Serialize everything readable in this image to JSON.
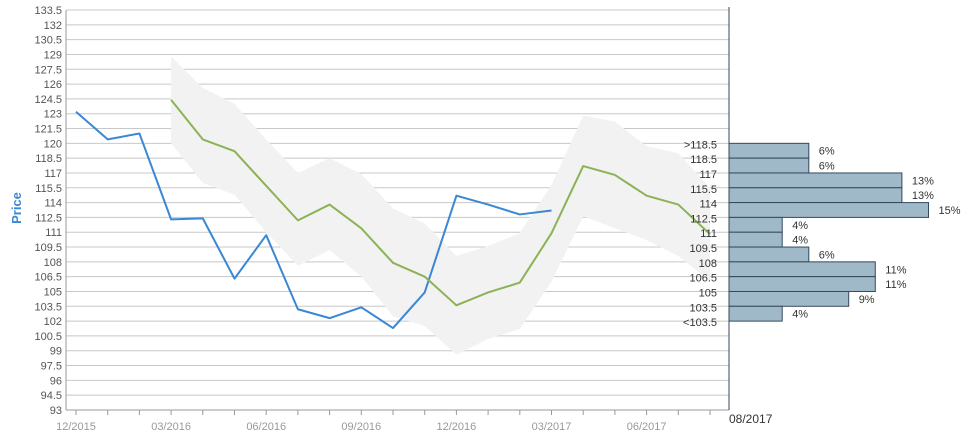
{
  "chart_data": {
    "type": "line",
    "ylabel": "Price",
    "ylim": [
      93,
      133.5
    ],
    "y_ticks": [
      93,
      94.5,
      96,
      97.5,
      99,
      100.5,
      102,
      103.5,
      105,
      106.5,
      108,
      109.5,
      111,
      112.5,
      114,
      115.5,
      117,
      118.5,
      120,
      121.5,
      123,
      124.5,
      126,
      127.5,
      129,
      130.5,
      132,
      133.5
    ],
    "y_tick_labels": [
      "93",
      "94.5",
      "96",
      "97.5",
      "99",
      "100.5",
      "102",
      "103.5",
      "105",
      "106.5",
      "108",
      "109.5",
      "111",
      "112.5",
      "114",
      "115.5",
      "117",
      "118.5",
      "120",
      "121.5",
      "123",
      "124.5",
      "126",
      "127.5",
      "129",
      "130.5",
      "132",
      "133.5"
    ],
    "x_tick_labels": [
      "12/2015",
      "03/2016",
      "06/2016",
      "09/2016",
      "12/2016",
      "03/2017",
      "06/2017"
    ],
    "x_extra_label": "08/2017",
    "x_start": "2015-12",
    "months": [
      "2015-12",
      "2016-01",
      "2016-02",
      "2016-03",
      "2016-04",
      "2016-05",
      "2016-06",
      "2016-07",
      "2016-08",
      "2016-09",
      "2016-10",
      "2016-11",
      "2016-12",
      "2017-01",
      "2017-02",
      "2017-03",
      "2017-04",
      "2017-05",
      "2017-06",
      "2017-07",
      "2017-08"
    ],
    "colors": {
      "actual": "#3a87d4",
      "forecast": "#8db255",
      "band": "#f2f2f2",
      "histogram_fill": "#a0b9c8",
      "histogram_stroke": "#34495e",
      "grid": "#c8c8c8"
    },
    "series": [
      {
        "key": "actual",
        "points": [
          [
            "2015-12",
            123.2
          ],
          [
            "2016-01",
            120.4
          ],
          [
            "2016-02",
            121.0
          ],
          [
            "2016-03",
            112.3
          ],
          [
            "2016-04",
            112.4
          ],
          [
            "2016-05",
            106.3
          ],
          [
            "2016-06",
            110.7
          ],
          [
            "2016-07",
            103.2
          ],
          [
            "2016-08",
            102.3
          ],
          [
            "2016-09",
            103.4
          ],
          [
            "2016-10",
            101.3
          ],
          [
            "2016-11",
            104.9
          ],
          [
            "2016-12",
            114.7
          ],
          [
            "2017-01",
            113.8
          ],
          [
            "2017-02",
            112.8
          ],
          [
            "2017-03",
            113.2
          ]
        ]
      },
      {
        "key": "forecast",
        "points": [
          [
            "2016-03",
            124.4
          ],
          [
            "2016-04",
            120.4
          ],
          [
            "2016-05",
            119.2
          ],
          [
            "2016-06",
            115.7
          ],
          [
            "2016-07",
            112.2
          ],
          [
            "2016-08",
            113.8
          ],
          [
            "2016-09",
            111.4
          ],
          [
            "2016-10",
            107.9
          ],
          [
            "2016-11",
            106.5
          ],
          [
            "2016-12",
            103.6
          ],
          [
            "2017-01",
            104.9
          ],
          [
            "2017-02",
            105.9
          ],
          [
            "2017-03",
            110.9
          ],
          [
            "2017-04",
            117.7
          ],
          [
            "2017-05",
            116.8
          ],
          [
            "2017-06",
            114.7
          ],
          [
            "2017-07",
            113.8
          ],
          [
            "2017-08",
            110.8
          ]
        ]
      }
    ],
    "band": [
      [
        "2016-03",
        120.0,
        128.8
      ],
      [
        "2016-04",
        116.0,
        125.6
      ],
      [
        "2016-05",
        114.8,
        124.0
      ],
      [
        "2016-06",
        111.0,
        120.4
      ],
      [
        "2016-07",
        107.6,
        117.0
      ],
      [
        "2016-08",
        109.2,
        118.5
      ],
      [
        "2016-09",
        106.5,
        116.9
      ],
      [
        "2016-10",
        102.5,
        113.4
      ],
      [
        "2016-11",
        101.5,
        111.9
      ],
      [
        "2016-12",
        98.6,
        108.6
      ],
      [
        "2017-01",
        100.2,
        109.6
      ],
      [
        "2017-02",
        101.2,
        110.9
      ],
      [
        "2017-03",
        106.0,
        115.8
      ],
      [
        "2017-04",
        112.6,
        122.8
      ],
      [
        "2017-05",
        111.4,
        122.2
      ],
      [
        "2017-06",
        110.2,
        119.7
      ],
      [
        "2017-07",
        108.6,
        119.0
      ],
      [
        "2017-08",
        106.0,
        115.5
      ]
    ],
    "histogram": [
      {
        "label": ">118.5",
        "value": 6,
        "text": "6%"
      },
      {
        "label": "118.5",
        "value": 6,
        "text": "6%"
      },
      {
        "label": "117",
        "value": 13,
        "text": "13%"
      },
      {
        "label": "115.5",
        "value": 13,
        "text": "13%"
      },
      {
        "label": "114",
        "value": 15,
        "text": "15%"
      },
      {
        "label": "112.5",
        "value": 4,
        "text": "4%"
      },
      {
        "label": "111",
        "value": 4,
        "text": "4%"
      },
      {
        "label": "109.5",
        "value": 6,
        "text": "6%"
      },
      {
        "label": "108",
        "value": 11,
        "text": "11%"
      },
      {
        "label": "106.5",
        "value": 11,
        "text": "11%"
      },
      {
        "label": "105",
        "value": 9,
        "text": "9%"
      },
      {
        "label": "103.5",
        "value": 4,
        "text": "4%"
      }
    ],
    "histogram_bottom_label": "<103.5",
    "histogram_top": 120,
    "histogram_step": 1.5,
    "histogram_max": 15,
    "grid": true
  }
}
